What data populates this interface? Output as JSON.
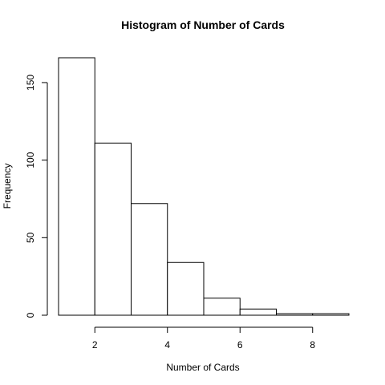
{
  "chart_data": {
    "type": "bar",
    "title": "Histogram of Number of Cards",
    "xlabel": "Number of Cards",
    "ylabel": "Frequency",
    "bins": [
      {
        "start": 1,
        "end": 2,
        "count": 166
      },
      {
        "start": 2,
        "end": 3,
        "count": 111
      },
      {
        "start": 3,
        "end": 4,
        "count": 72
      },
      {
        "start": 4,
        "end": 5,
        "count": 34
      },
      {
        "start": 5,
        "end": 6,
        "count": 11
      },
      {
        "start": 6,
        "end": 7,
        "count": 4
      },
      {
        "start": 7,
        "end": 8,
        "count": 1
      },
      {
        "start": 8,
        "end": 9,
        "count": 1
      }
    ],
    "xlim": [
      1,
      9
    ],
    "ylim": [
      0,
      166
    ],
    "x_ticks": [
      2,
      4,
      6,
      8
    ],
    "y_ticks": [
      0,
      50,
      100,
      150
    ],
    "grid": false,
    "colors": {
      "bar_fill": "#ffffff",
      "bar_stroke": "#000000"
    }
  }
}
